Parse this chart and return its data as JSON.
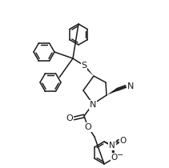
{
  "bg_color": "#ffffff",
  "lc": "#1a1a1a",
  "lw": 1.1,
  "figsize": [
    2.11,
    2.1
  ],
  "dpi": 100,
  "xlim": [
    0,
    211
  ],
  "ylim": [
    0,
    210
  ]
}
